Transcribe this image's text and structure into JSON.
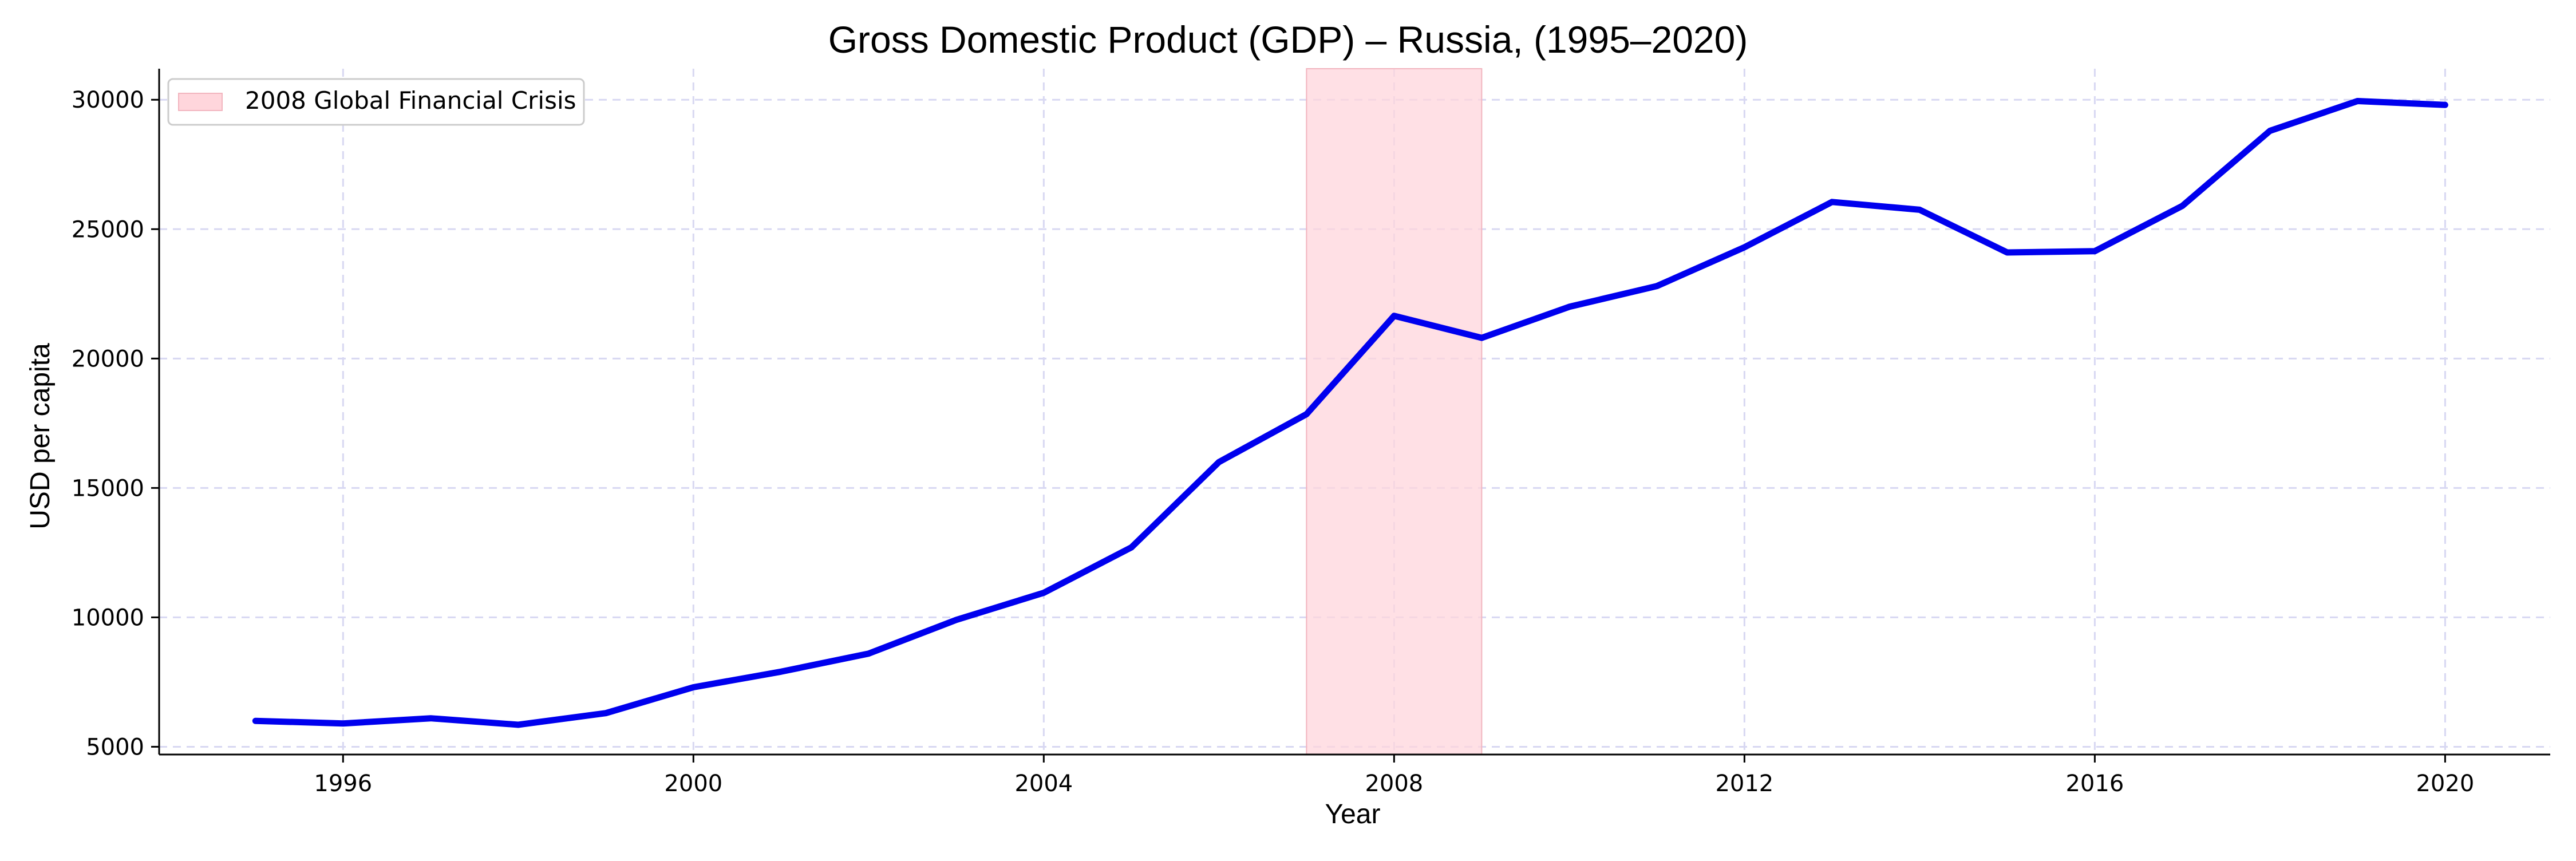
{
  "chart_data": {
    "type": "line",
    "title": "Gross Domestic Product (GDP) – Russia, (1995–2020)",
    "xlabel": "Year",
    "ylabel": "USD per capita",
    "xlim": [
      1993.9,
      2021.2
    ],
    "ylim": [
      4700,
      31200
    ],
    "xticks": [
      1996,
      2000,
      2004,
      2008,
      2012,
      2016,
      2020
    ],
    "yticks": [
      5000,
      10000,
      15000,
      20000,
      25000,
      30000
    ],
    "grid": true,
    "legend_position": "top-left",
    "series": [
      {
        "values": [
          [
            1995,
            6000
          ],
          [
            1996,
            5900
          ],
          [
            1997,
            6100
          ],
          [
            1998,
            5850
          ],
          [
            1999,
            6300
          ],
          [
            2000,
            7300
          ],
          [
            2001,
            7900
          ],
          [
            2002,
            8600
          ],
          [
            2003,
            9900
          ],
          [
            2004,
            10950
          ],
          [
            2005,
            12700
          ],
          [
            2006,
            16000
          ],
          [
            2007,
            17850
          ],
          [
            2008,
            21650
          ],
          [
            2009,
            20800
          ],
          [
            2010,
            22000
          ],
          [
            2011,
            22800
          ],
          [
            2012,
            24300
          ],
          [
            2013,
            26050
          ],
          [
            2014,
            25750
          ],
          [
            2015,
            24100
          ],
          [
            2016,
            24150
          ],
          [
            2017,
            25900
          ],
          [
            2018,
            28800
          ],
          [
            2019,
            29950
          ],
          [
            2020,
            29800
          ]
        ],
        "color": "#0000ee"
      }
    ],
    "shaded_regions": [
      {
        "label": "2008 Global Financial Crisis",
        "x_start": 2007,
        "x_end": 2009,
        "color": "#ffd6dc"
      }
    ],
    "colors": {
      "grid": "#d8d8f2",
      "axis": "#000000"
    }
  }
}
